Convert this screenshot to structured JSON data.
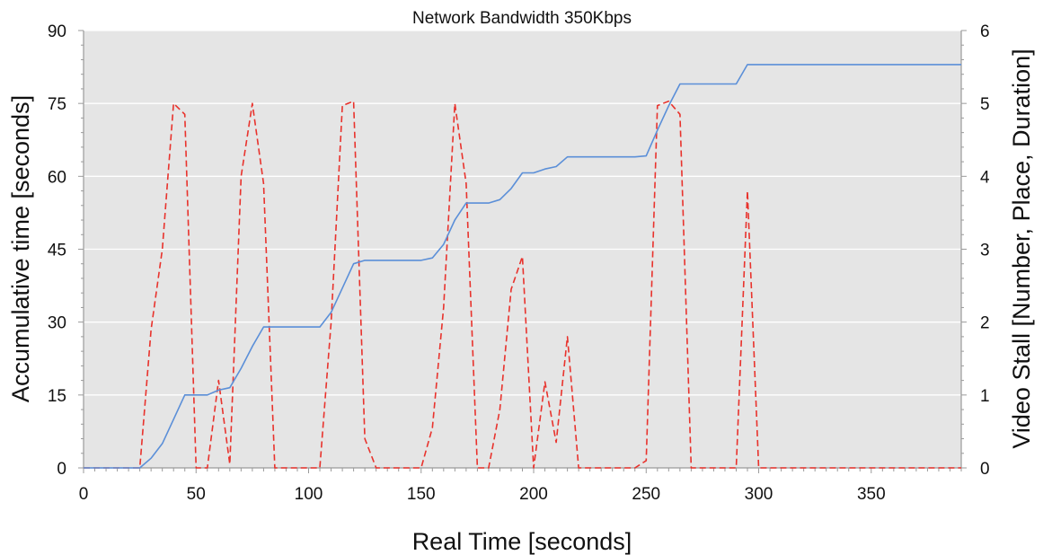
{
  "chart_data": {
    "type": "line",
    "title": "Network Bandwidth 350Kbps",
    "xlabel": "Real Time [seconds]",
    "ylabel": "Accumulative time [seconds]",
    "ylabel_right": "Video Stall [Number, Place, Duration]",
    "xlim": [
      0,
      390
    ],
    "ylim": [
      0,
      90
    ],
    "ylim_right": [
      0,
      6
    ],
    "x_ticks": [
      0,
      50,
      100,
      150,
      200,
      250,
      300,
      350
    ],
    "y_ticks": [
      0,
      15,
      30,
      45,
      60,
      75,
      90
    ],
    "y_ticks_right": [
      0,
      1,
      2,
      3,
      4,
      5,
      6
    ],
    "grid": "horizontal",
    "legend": "none",
    "plot_background": "#e5e5e5",
    "series": [
      {
        "axis": "left",
        "style": "solid",
        "color": "#5b8fd8",
        "x": [
          0,
          25,
          30,
          35,
          40,
          45,
          50,
          55,
          60,
          65,
          70,
          75,
          80,
          85,
          90,
          95,
          100,
          105,
          110,
          115,
          120,
          125,
          130,
          135,
          140,
          145,
          150,
          155,
          160,
          165,
          170,
          175,
          180,
          185,
          190,
          195,
          200,
          205,
          210,
          215,
          220,
          225,
          230,
          235,
          240,
          245,
          250,
          255,
          260,
          265,
          270,
          275,
          280,
          285,
          290,
          295,
          300,
          390
        ],
        "y": [
          0,
          0,
          2,
          5,
          10,
          15,
          15,
          15,
          16,
          16.5,
          20.5,
          25,
          29,
          29,
          29,
          29,
          29,
          29,
          32,
          37,
          42,
          42.7,
          42.7,
          42.7,
          42.7,
          42.7,
          42.7,
          43.2,
          46,
          51,
          54.5,
          54.5,
          54.5,
          55.2,
          57.5,
          60.7,
          60.7,
          61.5,
          62,
          64,
          64,
          64,
          64,
          64,
          64,
          64,
          64.2,
          69.5,
          74.5,
          79,
          79,
          79,
          79,
          79,
          79,
          83,
          83,
          83
        ]
      },
      {
        "axis": "right",
        "style": "dashed",
        "color": "#e8322c",
        "x": [
          0,
          25,
          30,
          35,
          40,
          45,
          50,
          55,
          60,
          65,
          70,
          75,
          80,
          85,
          90,
          95,
          100,
          105,
          110,
          115,
          120,
          125,
          130,
          135,
          140,
          145,
          150,
          155,
          160,
          165,
          170,
          175,
          180,
          185,
          190,
          195,
          200,
          205,
          210,
          215,
          220,
          225,
          230,
          235,
          240,
          245,
          250,
          255,
          260,
          265,
          270,
          275,
          280,
          285,
          290,
          295,
          300,
          390
        ],
        "y": [
          0,
          0,
          1.9,
          3,
          5,
          4.85,
          0,
          0,
          1.2,
          0.05,
          4,
          5,
          3.9,
          0,
          0,
          0,
          0,
          0,
          2,
          4.97,
          5.03,
          0.4,
          0,
          0,
          0,
          0,
          0,
          0.55,
          2.2,
          5,
          3.9,
          0,
          0,
          0.8,
          2.45,
          2.9,
          0,
          1.18,
          0.35,
          1.8,
          0,
          0,
          0,
          0,
          0,
          0,
          0.1,
          4.97,
          5.03,
          4.85,
          0,
          0,
          0,
          0,
          0,
          3.8,
          0,
          0
        ]
      }
    ]
  }
}
